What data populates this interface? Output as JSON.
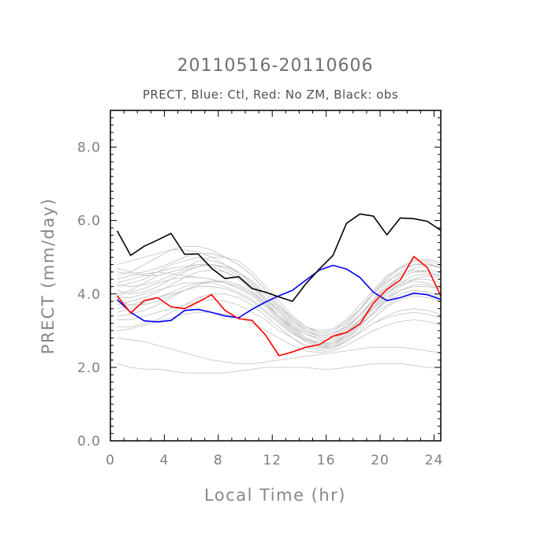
{
  "chart_data": {
    "type": "line",
    "title": "20110516-20110606",
    "subtitle": "PRECT, Blue: Ctl, Red: No ZM, Black: obs",
    "xlabel": "Local Time (hr)",
    "ylabel": "PRECT (mm/day)",
    "xlim": [
      0,
      24.5
    ],
    "ylim": [
      0,
      9
    ],
    "xticks": [
      0,
      4,
      8,
      12,
      16,
      20,
      24
    ],
    "xtick_labels": [
      "0",
      "4",
      "8",
      "12",
      "16",
      "20",
      "24"
    ],
    "yticks": [
      0,
      2,
      4,
      6,
      8
    ],
    "ytick_labels": [
      "0.0",
      "2.0",
      "4.0",
      "6.0",
      "8.0"
    ],
    "x": [
      0.5,
      1.5,
      2.5,
      3.5,
      4.5,
      5.5,
      6.5,
      7.5,
      8.5,
      9.5,
      10.5,
      11.5,
      12.5,
      13.5,
      14.5,
      15.5,
      16.5,
      17.5,
      18.5,
      19.5,
      20.5,
      21.5,
      22.5,
      23.5,
      24.5
    ],
    "series": [
      {
        "name": "Ctl",
        "color": "#0000ff",
        "values": [
          3.85,
          3.5,
          3.27,
          3.24,
          3.28,
          3.55,
          3.58,
          3.5,
          3.4,
          3.35,
          3.58,
          3.78,
          3.95,
          4.1,
          4.38,
          4.65,
          4.78,
          4.68,
          4.45,
          4.05,
          3.82,
          3.9,
          4.02,
          3.98,
          3.85
        ]
      },
      {
        "name": "No ZM",
        "color": "#ff0000",
        "values": [
          3.95,
          3.48,
          3.82,
          3.9,
          3.65,
          3.6,
          3.78,
          3.98,
          3.55,
          3.33,
          3.28,
          2.88,
          2.32,
          2.42,
          2.55,
          2.62,
          2.85,
          2.95,
          3.18,
          3.75,
          4.12,
          4.38,
          5.02,
          4.72,
          3.95
        ]
      },
      {
        "name": "obs",
        "color": "#000000",
        "values": [
          5.72,
          5.05,
          5.3,
          5.47,
          5.65,
          5.08,
          5.09,
          4.7,
          4.42,
          4.47,
          4.15,
          4.05,
          3.92,
          3.8,
          4.28,
          4.68,
          5.05,
          5.92,
          6.18,
          6.12,
          5.61,
          6.07,
          6.05,
          5.98,
          5.73
        ]
      }
    ],
    "ensemble": {
      "color": "#c8c8c8",
      "members": [
        [
          3.9,
          3.9,
          4.0,
          4.1,
          4.2,
          4.3,
          4.3,
          4.35,
          4.3,
          4.2,
          4.0,
          3.7,
          3.4,
          3.1,
          2.9,
          2.8,
          2.85,
          3.0,
          3.3,
          3.6,
          3.9,
          4.1,
          4.2,
          4.2,
          4.15
        ],
        [
          4.2,
          4.3,
          4.4,
          4.6,
          4.8,
          4.9,
          5.0,
          4.9,
          4.8,
          4.6,
          4.3,
          3.9,
          3.5,
          3.1,
          2.8,
          2.6,
          2.6,
          2.8,
          3.1,
          3.5,
          3.9,
          4.2,
          4.4,
          4.5,
          4.45
        ],
        [
          3.6,
          3.7,
          3.8,
          3.9,
          4.0,
          4.1,
          4.2,
          4.2,
          4.15,
          4.0,
          3.8,
          3.5,
          3.2,
          2.9,
          2.75,
          2.7,
          2.8,
          2.95,
          3.2,
          3.45,
          3.7,
          3.9,
          4.0,
          4.0,
          3.9
        ],
        [
          4.5,
          4.6,
          4.8,
          5.0,
          5.2,
          5.3,
          5.3,
          5.2,
          5.0,
          4.8,
          4.5,
          4.1,
          3.7,
          3.3,
          3.0,
          2.9,
          2.95,
          3.1,
          3.4,
          3.8,
          4.2,
          4.5,
          4.7,
          4.8,
          4.7
        ],
        [
          3.3,
          3.3,
          3.4,
          3.5,
          3.6,
          3.7,
          3.8,
          3.85,
          3.8,
          3.7,
          3.5,
          3.3,
          3.0,
          2.8,
          2.6,
          2.5,
          2.55,
          2.7,
          2.95,
          3.2,
          3.4,
          3.55,
          3.6,
          3.55,
          3.45
        ],
        [
          4.0,
          4.1,
          4.3,
          4.5,
          4.6,
          4.7,
          4.8,
          4.8,
          4.7,
          4.5,
          4.2,
          3.8,
          3.4,
          3.0,
          2.7,
          2.55,
          2.6,
          2.85,
          3.2,
          3.6,
          4.0,
          4.3,
          4.5,
          4.55,
          4.5
        ],
        [
          4.7,
          4.6,
          4.5,
          4.5,
          4.6,
          4.7,
          4.9,
          5.0,
          5.0,
          4.9,
          4.6,
          4.2,
          3.8,
          3.4,
          3.1,
          3.0,
          3.05,
          3.3,
          3.7,
          4.1,
          4.5,
          4.7,
          4.8,
          4.8,
          4.75
        ],
        [
          3.1,
          3.1,
          3.2,
          3.3,
          3.5,
          3.7,
          3.9,
          4.0,
          4.0,
          3.9,
          3.7,
          3.4,
          3.1,
          2.8,
          2.55,
          2.45,
          2.5,
          2.7,
          2.95,
          3.2,
          3.35,
          3.45,
          3.5,
          3.45,
          3.35
        ],
        [
          4.3,
          4.4,
          4.5,
          4.6,
          4.7,
          4.75,
          4.8,
          4.75,
          4.6,
          4.4,
          4.1,
          3.75,
          3.4,
          3.1,
          2.9,
          2.8,
          2.85,
          3.05,
          3.4,
          3.85,
          4.3,
          4.6,
          4.8,
          4.85,
          4.7
        ],
        [
          3.8,
          3.7,
          3.7,
          3.8,
          3.95,
          4.1,
          4.25,
          4.35,
          4.35,
          4.25,
          4.05,
          3.75,
          3.4,
          3.05,
          2.8,
          2.65,
          2.7,
          2.9,
          3.25,
          3.65,
          4.0,
          4.25,
          4.35,
          4.3,
          4.2
        ],
        [
          4.8,
          4.9,
          5.0,
          5.1,
          5.2,
          5.2,
          5.15,
          5.0,
          4.8,
          4.55,
          4.25,
          3.9,
          3.55,
          3.2,
          2.95,
          2.85,
          2.9,
          3.15,
          3.55,
          4.0,
          4.4,
          4.7,
          4.9,
          4.95,
          4.85
        ],
        [
          3.5,
          3.6,
          3.75,
          3.9,
          4.05,
          4.2,
          4.3,
          4.3,
          4.2,
          4.05,
          3.85,
          3.55,
          3.25,
          2.95,
          2.7,
          2.55,
          2.55,
          2.7,
          3.0,
          3.35,
          3.65,
          3.85,
          3.95,
          3.9,
          3.8
        ],
        [
          4.1,
          4.0,
          4.05,
          4.2,
          4.4,
          4.6,
          4.75,
          4.8,
          4.75,
          4.6,
          4.35,
          4.0,
          3.65,
          3.3,
          3.05,
          2.95,
          3.0,
          3.25,
          3.6,
          4.0,
          4.35,
          4.55,
          4.65,
          4.6,
          4.5
        ],
        [
          3.0,
          3.05,
          3.15,
          3.25,
          3.35,
          3.45,
          3.5,
          3.5,
          3.45,
          3.35,
          3.2,
          3.0,
          2.8,
          2.6,
          2.45,
          2.4,
          2.45,
          2.6,
          2.8,
          3.0,
          3.15,
          3.25,
          3.3,
          3.25,
          3.15
        ],
        [
          2.1,
          2.0,
          1.95,
          1.95,
          1.9,
          1.85,
          1.85,
          1.85,
          1.85,
          1.9,
          1.95,
          2.0,
          2.0,
          2.0,
          2.0,
          1.95,
          1.95,
          2.0,
          2.05,
          2.1,
          2.1,
          2.1,
          2.05,
          2.0,
          2.0
        ],
        [
          2.8,
          2.75,
          2.7,
          2.6,
          2.5,
          2.4,
          2.3,
          2.2,
          2.15,
          2.1,
          2.1,
          2.15,
          2.2,
          2.25,
          2.3,
          2.35,
          2.4,
          2.45,
          2.5,
          2.55,
          2.55,
          2.55,
          2.5,
          2.45,
          2.4
        ],
        [
          4.4,
          4.5,
          4.55,
          4.6,
          4.55,
          4.5,
          4.45,
          4.4,
          4.3,
          4.2,
          4.0,
          3.7,
          3.35,
          3.0,
          2.75,
          2.6,
          2.65,
          2.9,
          3.3,
          3.75,
          4.15,
          4.45,
          4.6,
          4.65,
          4.6
        ],
        [
          3.7,
          3.8,
          3.9,
          4.05,
          4.25,
          4.45,
          4.6,
          4.65,
          4.6,
          4.45,
          4.2,
          3.85,
          3.5,
          3.15,
          2.9,
          2.75,
          2.75,
          2.95,
          3.3,
          3.7,
          4.05,
          4.3,
          4.4,
          4.4,
          4.3
        ],
        [
          4.6,
          4.55,
          4.6,
          4.7,
          4.85,
          5.0,
          5.1,
          5.1,
          5.0,
          4.8,
          4.5,
          4.1,
          3.7,
          3.35,
          3.1,
          2.95,
          3.0,
          3.2,
          3.6,
          4.05,
          4.45,
          4.75,
          4.9,
          4.9,
          4.8
        ],
        [
          3.95,
          4.05,
          4.15,
          4.3,
          4.4,
          4.45,
          4.45,
          4.4,
          4.3,
          4.15,
          3.95,
          3.65,
          3.3,
          2.95,
          2.7,
          2.55,
          2.55,
          2.75,
          3.1,
          3.5,
          3.85,
          4.1,
          4.25,
          4.25,
          4.15
        ],
        [
          3.4,
          3.45,
          3.55,
          3.7,
          3.9,
          4.1,
          4.25,
          4.35,
          4.35,
          4.25,
          4.05,
          3.75,
          3.4,
          3.05,
          2.8,
          2.65,
          2.65,
          2.85,
          3.15,
          3.5,
          3.8,
          4.0,
          4.1,
          4.05,
          3.95
        ],
        [
          4.25,
          4.2,
          4.25,
          4.35,
          4.5,
          4.65,
          4.75,
          4.8,
          4.75,
          4.6,
          4.35,
          4.0,
          3.6,
          3.25,
          3.0,
          2.85,
          2.9,
          3.1,
          3.45,
          3.85,
          4.2,
          4.45,
          4.6,
          4.6,
          4.5
        ]
      ]
    }
  }
}
